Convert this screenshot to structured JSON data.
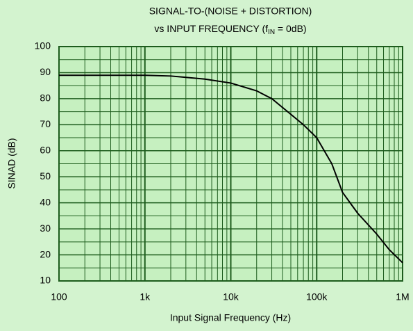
{
  "chart_data": {
    "type": "line",
    "title": {
      "line1": "SIGNAL-TO-(NOISE + DISTORTION)",
      "line2": "vs INPUT FREQUENCY (f",
      "subscript": "IN",
      "line2_end": " = 0dB)"
    },
    "xlabel": "Input Signal Frequency (Hz)",
    "ylabel": "SINAD (dB)",
    "x": [
      100,
      1000,
      2000,
      5000,
      10000,
      20000,
      30000,
      50000,
      70000,
      100000,
      150000,
      200000,
      300000,
      500000,
      700000,
      1000000
    ],
    "series": [
      {
        "name": "SINAD",
        "color": "#000000",
        "values": [
          89,
          89,
          88.7,
          87.5,
          86,
          83,
          80,
          74,
          70,
          65,
          55,
          44,
          36,
          28,
          22,
          17
        ]
      }
    ],
    "xlim": [
      100,
      1000000
    ],
    "ylim": [
      10,
      100
    ],
    "xscale": "log",
    "xticks": [
      {
        "value": 100,
        "label": "100"
      },
      {
        "value": 1000,
        "label": "1k"
      },
      {
        "value": 10000,
        "label": "10k"
      },
      {
        "value": 100000,
        "label": "100k"
      },
      {
        "value": 1000000,
        "label": "1M"
      }
    ],
    "yticks": [
      10,
      20,
      30,
      40,
      50,
      60,
      70,
      80,
      90,
      100
    ],
    "grid": true,
    "minor_grid": true
  }
}
